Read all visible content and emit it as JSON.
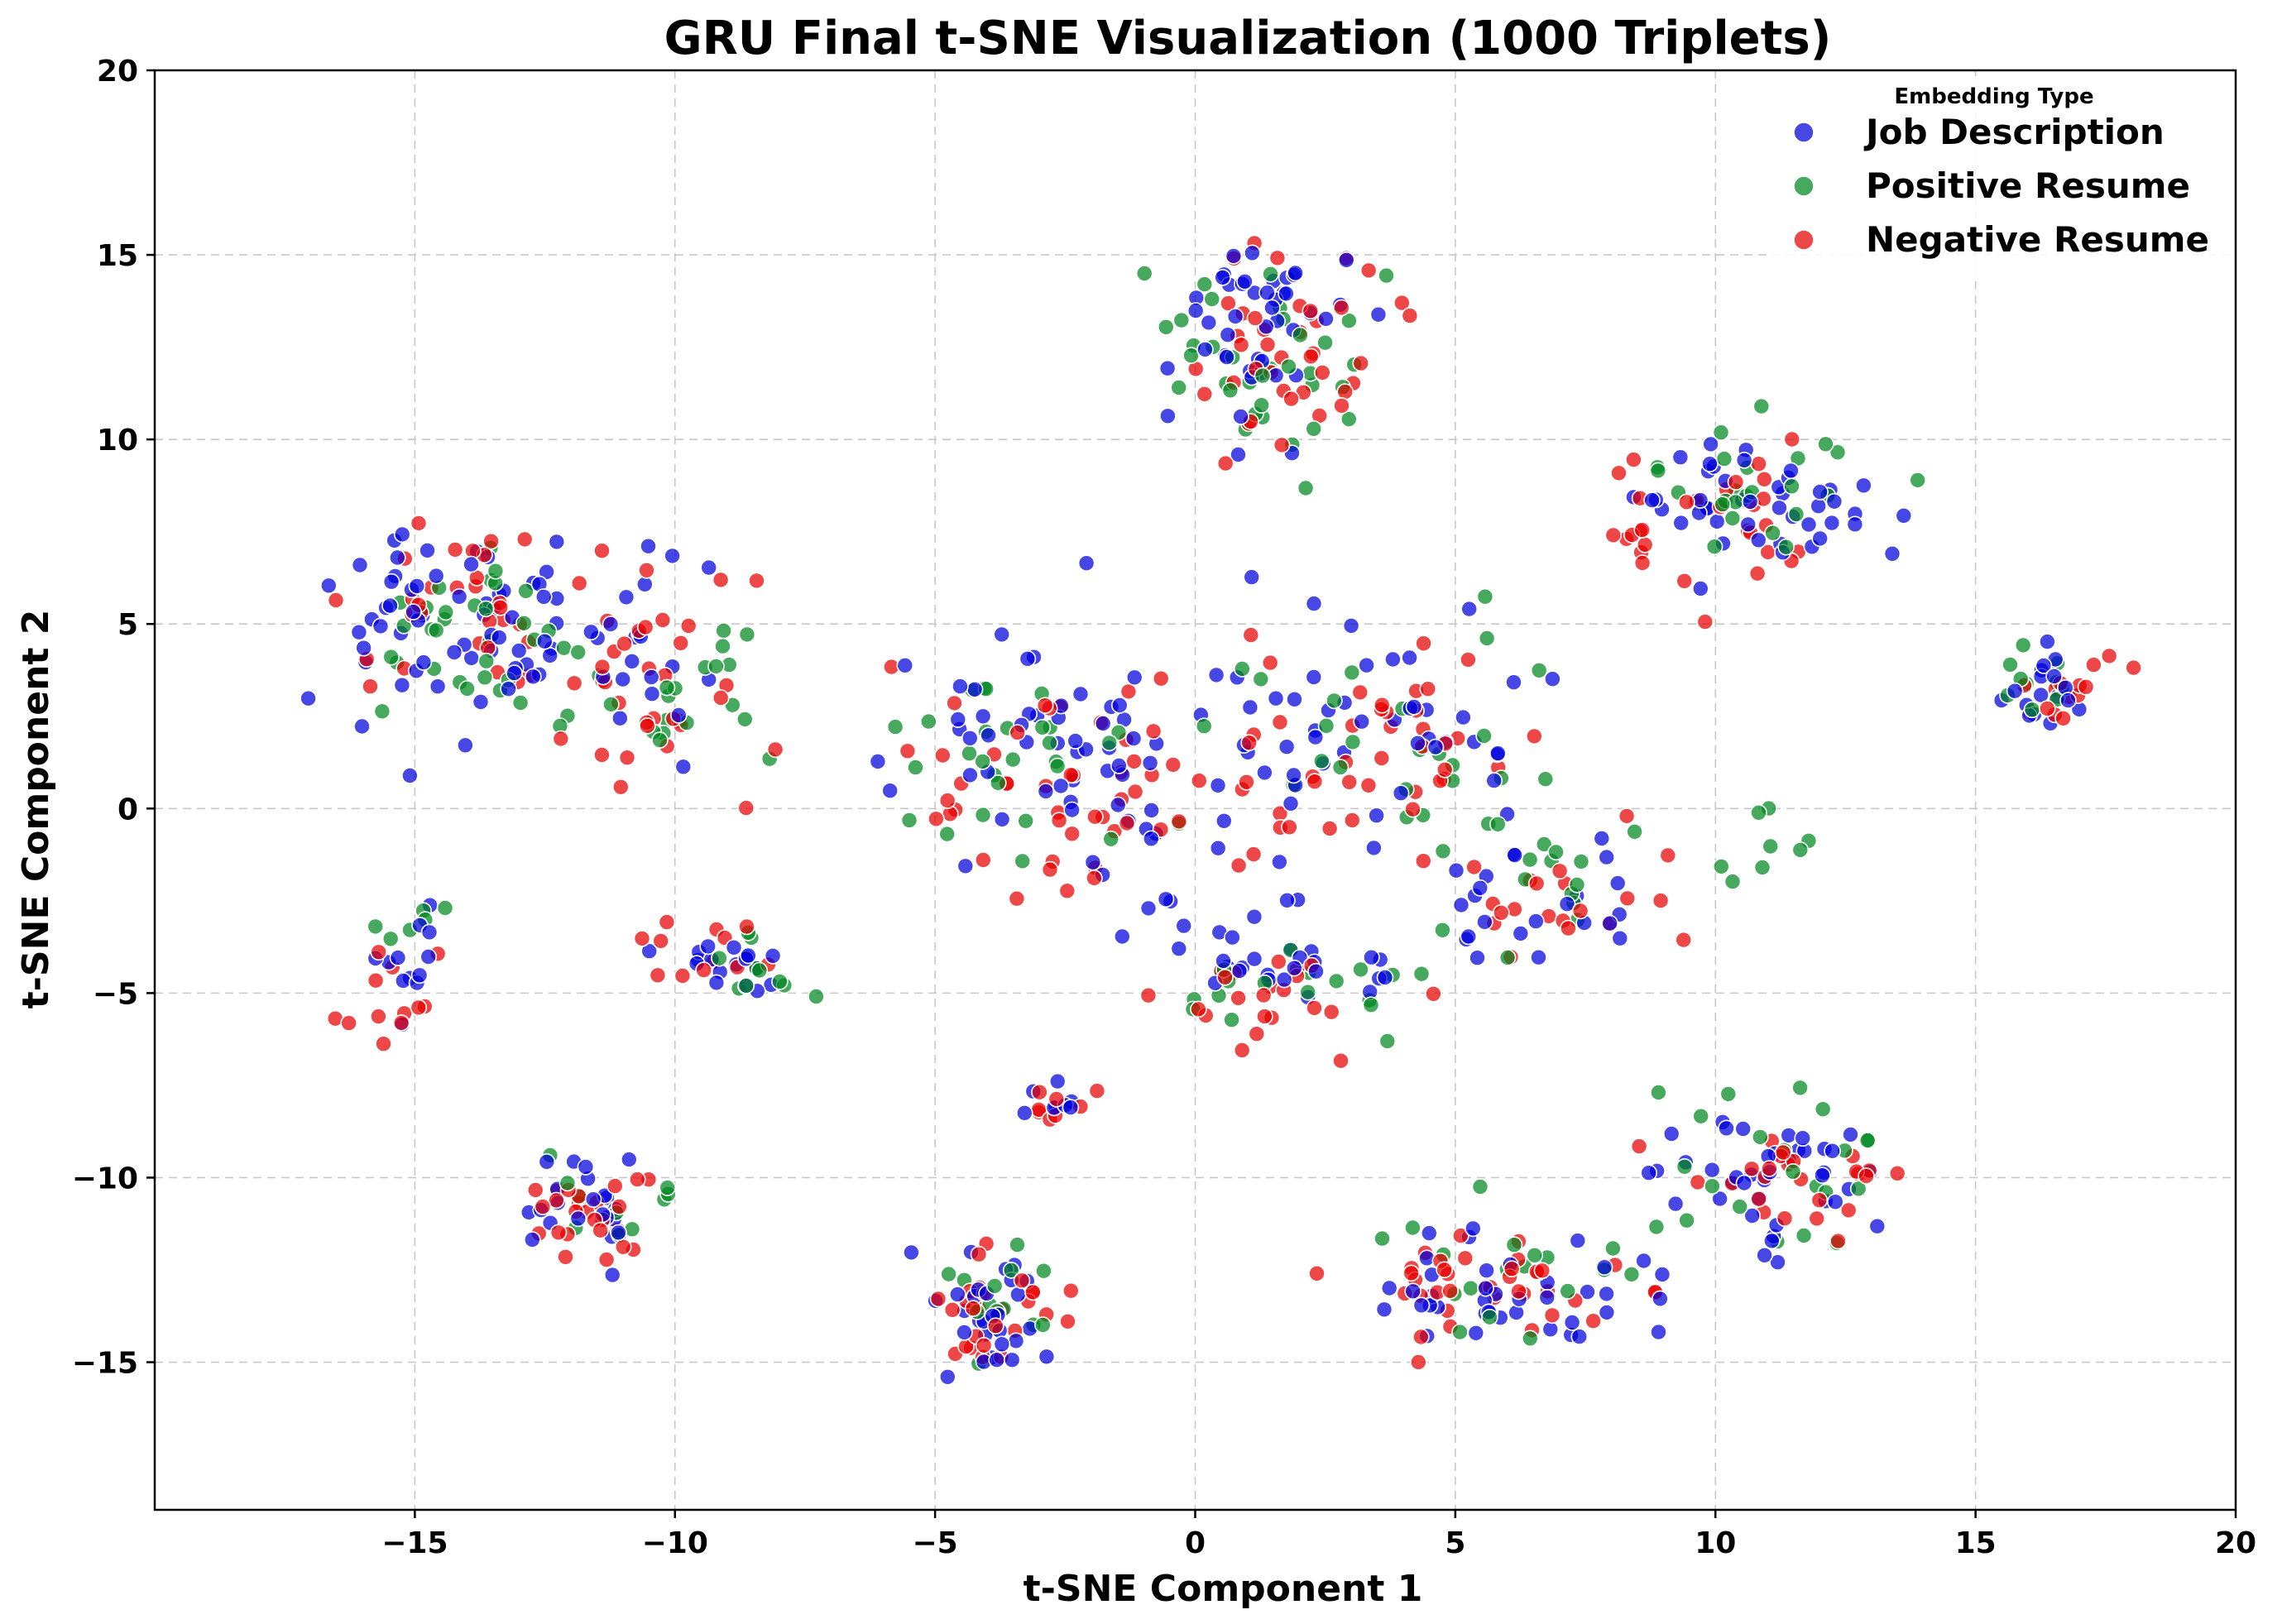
{
  "chart_data": {
    "type": "scatter",
    "title": "GRU Final t-SNE Visualization (1000 Triplets)",
    "xlabel": "t-SNE Component 1",
    "ylabel": "t-SNE Component 2",
    "xlim": [
      -20,
      20
    ],
    "ylim": [
      -19,
      20
    ],
    "xticks": [
      -15,
      -10,
      -5,
      0,
      5,
      10,
      15,
      20
    ],
    "yticks": [
      -15,
      -10,
      -5,
      0,
      5,
      10,
      15,
      20
    ],
    "xtick_labels": [
      "−15",
      "−10",
      "−5",
      "0",
      "5",
      "10",
      "15",
      "20"
    ],
    "ytick_labels": [
      "−15",
      "−10",
      "−5",
      "0",
      "5",
      "10",
      "15",
      "20"
    ],
    "grid": true,
    "legend": {
      "title": "Embedding Type",
      "placement": "top-right"
    },
    "series": [
      {
        "name": "Job Description",
        "color": "#0000dd",
        "clusters": [
          {
            "cx": -14.5,
            "cy": 5.0,
            "sx": 1.9,
            "sy": 2.2,
            "n": 55
          },
          {
            "cx": -11.0,
            "cy": 4.0,
            "sx": 1.8,
            "sy": 2.2,
            "n": 30
          },
          {
            "cx": -9.0,
            "cy": -4.2,
            "sx": 1.0,
            "sy": 0.8,
            "n": 18
          },
          {
            "cx": -15.0,
            "cy": -4.5,
            "sx": 0.8,
            "sy": 1.2,
            "n": 12
          },
          {
            "cx": -11.5,
            "cy": -11.0,
            "sx": 1.0,
            "sy": 1.3,
            "n": 22
          },
          {
            "cx": -4.0,
            "cy": -13.5,
            "sx": 1.3,
            "sy": 1.5,
            "n": 30
          },
          {
            "cx": -3.0,
            "cy": 2.0,
            "sx": 2.3,
            "sy": 2.2,
            "n": 45
          },
          {
            "cx": 1.5,
            "cy": 13.0,
            "sx": 1.6,
            "sy": 2.2,
            "n": 45
          },
          {
            "cx": 4.0,
            "cy": 2.5,
            "sx": 2.5,
            "sy": 2.5,
            "n": 40
          },
          {
            "cx": 6.5,
            "cy": -2.5,
            "sx": 1.8,
            "sy": 1.8,
            "n": 25
          },
          {
            "cx": 1.5,
            "cy": -4.5,
            "sx": 2.0,
            "sy": 1.2,
            "n": 25
          },
          {
            "cx": 11.0,
            "cy": 8.0,
            "sx": 2.0,
            "sy": 1.5,
            "n": 45
          },
          {
            "cx": 16.5,
            "cy": 3.2,
            "sx": 1.0,
            "sy": 0.8,
            "n": 18
          },
          {
            "cx": 6.0,
            "cy": -13.0,
            "sx": 2.2,
            "sy": 1.4,
            "n": 40
          },
          {
            "cx": 11.0,
            "cy": -10.0,
            "sx": 2.0,
            "sy": 1.6,
            "n": 40
          },
          {
            "cx": -2.5,
            "cy": -8.0,
            "sx": 0.6,
            "sy": 0.5,
            "n": 8
          },
          {
            "cx": 0.0,
            "cy": -0.5,
            "sx": 2.5,
            "sy": 3.0,
            "n": 25
          }
        ]
      },
      {
        "name": "Positive Resume",
        "color": "#00881e",
        "clusters": [
          {
            "cx": -14.0,
            "cy": 5.0,
            "sx": 1.6,
            "sy": 1.8,
            "n": 28
          },
          {
            "cx": -10.5,
            "cy": 3.5,
            "sx": 1.8,
            "sy": 2.2,
            "n": 25
          },
          {
            "cx": -8.5,
            "cy": -4.5,
            "sx": 1.0,
            "sy": 0.8,
            "n": 10
          },
          {
            "cx": -15.0,
            "cy": -3.0,
            "sx": 0.6,
            "sy": 0.8,
            "n": 6
          },
          {
            "cx": -11.0,
            "cy": -10.5,
            "sx": 1.0,
            "sy": 1.2,
            "n": 10
          },
          {
            "cx": -4.0,
            "cy": -13.0,
            "sx": 1.2,
            "sy": 1.5,
            "n": 14
          },
          {
            "cx": -3.0,
            "cy": 1.0,
            "sx": 2.4,
            "sy": 2.6,
            "n": 28
          },
          {
            "cx": 1.5,
            "cy": 12.0,
            "sx": 1.6,
            "sy": 2.6,
            "n": 35
          },
          {
            "cx": 4.0,
            "cy": 2.0,
            "sx": 2.5,
            "sy": 2.6,
            "n": 25
          },
          {
            "cx": 7.0,
            "cy": -2.0,
            "sx": 1.8,
            "sy": 1.8,
            "n": 15
          },
          {
            "cx": 2.0,
            "cy": -5.0,
            "sx": 2.0,
            "sy": 1.0,
            "n": 18
          },
          {
            "cx": 11.0,
            "cy": 8.5,
            "sx": 1.8,
            "sy": 1.6,
            "n": 25
          },
          {
            "cx": 16.0,
            "cy": 3.2,
            "sx": 1.0,
            "sy": 0.9,
            "n": 10
          },
          {
            "cx": 6.0,
            "cy": -12.5,
            "sx": 2.2,
            "sy": 1.4,
            "n": 18
          },
          {
            "cx": 11.0,
            "cy": -9.5,
            "sx": 2.0,
            "sy": 1.8,
            "n": 22
          },
          {
            "cx": 11.0,
            "cy": -1.5,
            "sx": 1.0,
            "sy": 1.5,
            "n": 8
          }
        ]
      },
      {
        "name": "Negative Resume",
        "color": "#e80000",
        "clusters": [
          {
            "cx": -14.0,
            "cy": 5.5,
            "sx": 1.8,
            "sy": 2.2,
            "n": 30
          },
          {
            "cx": -10.5,
            "cy": 3.5,
            "sx": 1.8,
            "sy": 2.4,
            "n": 35
          },
          {
            "cx": -9.0,
            "cy": -4.0,
            "sx": 1.2,
            "sy": 1.0,
            "n": 12
          },
          {
            "cx": -15.5,
            "cy": -5.0,
            "sx": 0.9,
            "sy": 1.2,
            "n": 12
          },
          {
            "cx": -11.5,
            "cy": -11.0,
            "sx": 1.1,
            "sy": 1.3,
            "n": 25
          },
          {
            "cx": -4.0,
            "cy": -13.5,
            "sx": 1.3,
            "sy": 1.4,
            "n": 30
          },
          {
            "cx": -3.0,
            "cy": 1.0,
            "sx": 2.5,
            "sy": 2.8,
            "n": 40
          },
          {
            "cx": 2.0,
            "cy": 12.5,
            "sx": 1.8,
            "sy": 2.6,
            "n": 40
          },
          {
            "cx": 4.0,
            "cy": 2.0,
            "sx": 2.6,
            "sy": 2.8,
            "n": 35
          },
          {
            "cx": 7.0,
            "cy": -2.5,
            "sx": 1.8,
            "sy": 1.8,
            "n": 20
          },
          {
            "cx": 1.5,
            "cy": -5.2,
            "sx": 2.0,
            "sy": 1.2,
            "n": 22
          },
          {
            "cx": 10.5,
            "cy": 8.0,
            "sx": 2.0,
            "sy": 1.8,
            "n": 30
          },
          {
            "cx": 17.0,
            "cy": 3.2,
            "sx": 0.9,
            "sy": 0.9,
            "n": 14
          },
          {
            "cx": 5.5,
            "cy": -13.0,
            "sx": 2.2,
            "sy": 1.4,
            "n": 38
          },
          {
            "cx": 11.0,
            "cy": -10.0,
            "sx": 2.0,
            "sy": 1.6,
            "n": 25
          },
          {
            "cx": -2.5,
            "cy": -8.0,
            "sx": 0.6,
            "sy": 0.5,
            "n": 8
          },
          {
            "cx": 0.5,
            "cy": -1.0,
            "sx": 2.5,
            "sy": 3.0,
            "n": 15
          }
        ]
      }
    ]
  }
}
